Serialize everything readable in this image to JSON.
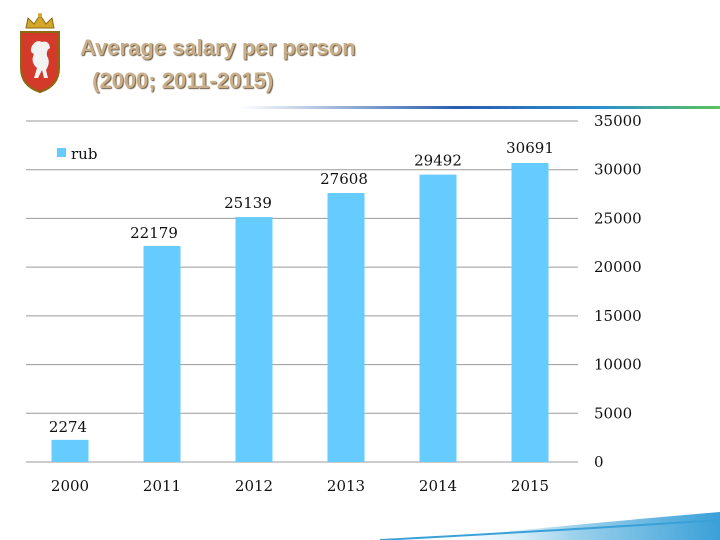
{
  "slide": {
    "title_line1": "Average salary per person",
    "title_line2": " (2000; 2011-2015)",
    "title_color": "#c9ae8a",
    "emblem_icon": "coat-of-arms-icon"
  },
  "chart_data": {
    "type": "bar",
    "title": "",
    "xlabel": "",
    "ylabel": "",
    "categories": [
      "2000",
      "2011",
      "2012",
      "2013",
      "2014",
      "2015"
    ],
    "series": [
      {
        "name": "rub",
        "values": [
          2274,
          22179,
          25139,
          27608,
          29492,
          30691
        ],
        "color": "#66ccff"
      }
    ],
    "data_labels": [
      "2274",
      "22179",
      "25139",
      "27608",
      "29492",
      "30691"
    ],
    "ylim": [
      0,
      35000
    ],
    "y_ticks": [
      0,
      5000,
      10000,
      15000,
      20000,
      25000,
      30000,
      35000
    ],
    "y_tick_labels": [
      "0",
      "5000",
      "10000",
      "15000",
      "20000",
      "25000",
      "30000",
      "35000"
    ],
    "y_axis_side": "right",
    "grid": true,
    "legend_position": "top-left"
  }
}
